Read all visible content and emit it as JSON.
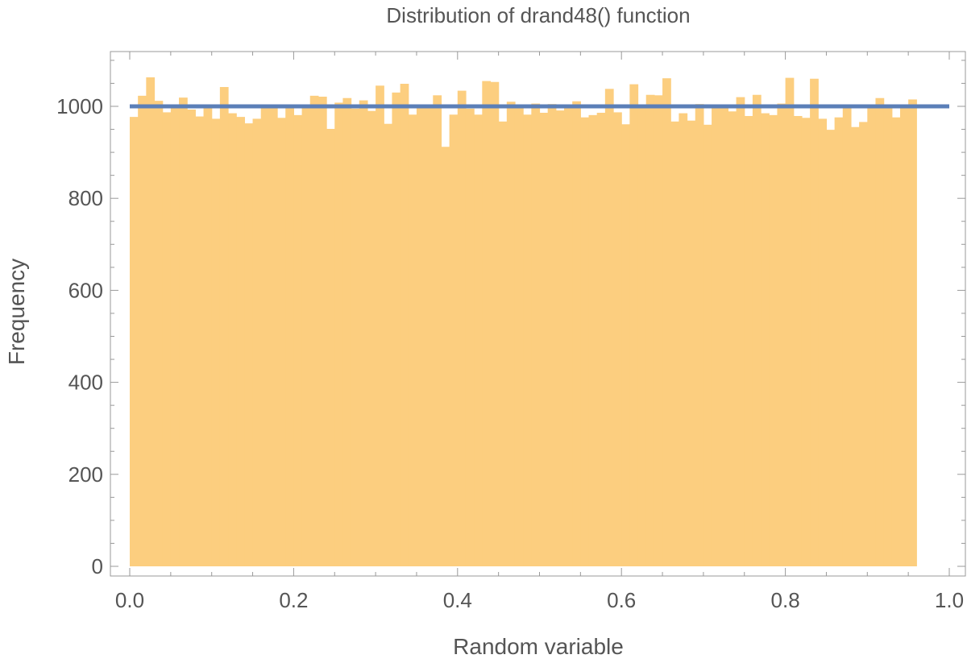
{
  "chart_data": {
    "type": "bar",
    "title": "Distribution of drand48() function",
    "xlabel": "Random variable",
    "ylabel": "Frequency",
    "xlim": [
      0.0,
      1.0
    ],
    "ylim": [
      0,
      1110
    ],
    "bin_width": 0.01,
    "x_ticks": [
      "0.0",
      "0.2",
      "0.4",
      "0.6",
      "0.8",
      "1.0"
    ],
    "y_ticks": [
      "0",
      "200",
      "400",
      "600",
      "800",
      "1000"
    ],
    "reference_line": 1000,
    "grid": false,
    "colors": {
      "bars": "#fcce7f",
      "reference_line": "#5b7fb8",
      "frame": "#999999",
      "text": "#555555"
    },
    "series": [
      {
        "values": [
          977,
          1023,
          1063,
          1012,
          987,
          1004,
          1019,
          993,
          978,
          1003,
          973,
          1042,
          985,
          977,
          963,
          973,
          999,
          1000,
          975,
          998,
          981,
          996,
          1023,
          1021,
          951,
          1008,
          1018,
          995,
          1013,
          990,
          1045,
          962,
          1030,
          1049,
          982,
          1000,
          1004,
          1024,
          912,
          982,
          1034,
          995,
          982,
          1055,
          1053,
          967,
          1010,
          997,
          982,
          1006,
          986,
          1005,
          991,
          999,
          1011,
          976,
          981,
          986,
          1038,
          987,
          961,
          1048,
          998,
          1025,
          1024,
          1061,
          967,
          985,
          969,
          1005,
          960,
          996,
          1003,
          989,
          1020,
          979,
          1025,
          985,
          981,
          1006,
          1062,
          979,
          975,
          1060,
          973,
          949,
          976,
          999,
          955,
          966,
          1000,
          1018,
          1000,
          976,
          1001,
          1015
        ]
      }
    ]
  }
}
